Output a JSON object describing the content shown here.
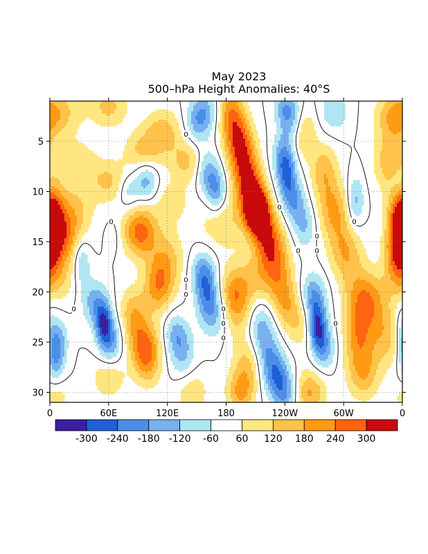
{
  "chart_data": {
    "type": "heatmap",
    "title_line1": "May 2023",
    "title_line2": "500–hPa  Height  Anomalies: 40°S",
    "x_axis": {
      "range_deg_east": [
        0,
        360
      ],
      "ticks": [
        {
          "lon": 0,
          "label": "0"
        },
        {
          "lon": 60,
          "label": "60E"
        },
        {
          "lon": 120,
          "label": "120E"
        },
        {
          "lon": 180,
          "label": "180"
        },
        {
          "lon": 240,
          "label": "120W"
        },
        {
          "lon": 300,
          "label": "60W"
        },
        {
          "lon": 360,
          "label": "0"
        }
      ]
    },
    "y_axis": {
      "range_days": [
        1,
        31
      ],
      "inverted": true,
      "ticks": [
        5,
        10,
        15,
        20,
        25,
        30
      ]
    },
    "grid": "dotted",
    "colorbar": {
      "placement": "bottom",
      "levels": [
        -300,
        -240,
        -180,
        -120,
        -60,
        60,
        120,
        180,
        240,
        300
      ],
      "labels": [
        "-300",
        "-240",
        "-180",
        "-120",
        "-60",
        "60",
        "120",
        "180",
        "240",
        "300"
      ],
      "colors": [
        "#3c1e9e",
        "#1e60d6",
        "#4a8ee8",
        "#78b0f0",
        "#b0e6f2",
        "#ffffff",
        "#ffe680",
        "#ffc24a",
        "#ff9a14",
        "#ff6410",
        "#c80a0a"
      ]
    },
    "zero_contour_labels": [
      "0",
      "0",
      "0",
      "0",
      "0",
      "0",
      "0",
      "0",
      "0",
      "0",
      "0",
      "0",
      "0",
      "0"
    ],
    "features": [
      {
        "lon": 0,
        "day": 13.5,
        "value": 240,
        "sx": 9,
        "st": 2.5
      },
      {
        "lon": 12,
        "day": 2,
        "value": 110,
        "sx": 16,
        "st": 1.8
      },
      {
        "lon": 360,
        "day": 13,
        "value": 230,
        "sx": 10,
        "st": 2.5
      },
      {
        "lon": 60,
        "day": 1.5,
        "value": 140,
        "sx": 14,
        "st": 1.5
      },
      {
        "lon": 115,
        "day": 4,
        "value": 150,
        "sx": 14,
        "st": 1.6
      },
      {
        "lon": 95,
        "day": 6,
        "value": 130,
        "sx": 14,
        "st": 1.4
      },
      {
        "lon": 150,
        "day": 3,
        "value": -150,
        "sx": 9,
        "st": 1.6
      },
      {
        "lon": 160,
        "day": 2,
        "value": -110,
        "sx": 8,
        "st": 1.4
      },
      {
        "lon": 185,
        "day": 2,
        "value": 190,
        "sx": 9,
        "st": 2.0
      },
      {
        "lon": 193,
        "day": 5,
        "value": 250,
        "sx": 10,
        "st": 2.0
      },
      {
        "lon": 200,
        "day": 8,
        "value": 230,
        "sx": 10,
        "st": 2.0
      },
      {
        "lon": 207,
        "day": 11,
        "value": 260,
        "sx": 10,
        "st": 2.0
      },
      {
        "lon": 212,
        "day": 12,
        "value": 330,
        "sx": 8,
        "st": 1.5
      },
      {
        "lon": 222,
        "day": 14.5,
        "value": 250,
        "sx": 10,
        "st": 2.0
      },
      {
        "lon": 232,
        "day": 17.5,
        "value": 190,
        "sx": 11,
        "st": 2.2
      },
      {
        "lon": 207,
        "day": 19,
        "value": 130,
        "sx": 14,
        "st": 2.0
      },
      {
        "lon": 248,
        "day": 3,
        "value": -170,
        "sx": 9,
        "st": 1.6
      },
      {
        "lon": 240,
        "day": 1.5,
        "value": -120,
        "sx": 8,
        "st": 1.3
      },
      {
        "lon": 258,
        "day": 4,
        "value": 170,
        "sx": 9,
        "st": 1.8
      },
      {
        "lon": 238,
        "day": 6.5,
        "value": -140,
        "sx": 8,
        "st": 1.6
      },
      {
        "lon": 242,
        "day": 8.5,
        "value": -200,
        "sx": 7,
        "st": 1.8
      },
      {
        "lon": 250,
        "day": 11,
        "value": -150,
        "sx": 8,
        "st": 1.6
      },
      {
        "lon": 260,
        "day": 13.5,
        "value": -120,
        "sx": 8,
        "st": 1.6
      },
      {
        "lon": 280,
        "day": 8,
        "value": 160,
        "sx": 10,
        "st": 2.0
      },
      {
        "lon": 290,
        "day": 12,
        "value": 180,
        "sx": 11,
        "st": 2.0
      },
      {
        "lon": 302,
        "day": 16,
        "value": 170,
        "sx": 12,
        "st": 2.0
      },
      {
        "lon": 315,
        "day": 20,
        "value": 120,
        "sx": 12,
        "st": 2.0
      },
      {
        "lon": 290,
        "day": 2,
        "value": -120,
        "sx": 10,
        "st": 1.5
      },
      {
        "lon": 312,
        "day": 11,
        "value": -150,
        "sx": 6,
        "st": 1.8
      },
      {
        "lon": 348,
        "day": 7,
        "value": 170,
        "sx": 12,
        "st": 2.0
      },
      {
        "lon": 352,
        "day": 2.5,
        "value": 170,
        "sx": 14,
        "st": 1.6
      },
      {
        "lon": 355,
        "day": 9,
        "value": -80,
        "sx": 6,
        "st": 1.3
      },
      {
        "lon": 30,
        "day": 7,
        "value": 90,
        "sx": 14,
        "st": 1.6
      },
      {
        "lon": 60,
        "day": 9,
        "value": 130,
        "sx": 14,
        "st": 1.5
      },
      {
        "lon": 98,
        "day": 9,
        "value": -160,
        "sx": 8,
        "st": 1.4
      },
      {
        "lon": 80,
        "day": 10,
        "value": -110,
        "sx": 7,
        "st": 1.2
      },
      {
        "lon": 140,
        "day": 7,
        "value": 140,
        "sx": 12,
        "st": 1.5
      },
      {
        "lon": 170,
        "day": 10,
        "value": -190,
        "sx": 7,
        "st": 1.6
      },
      {
        "lon": 160,
        "day": 8,
        "value": -150,
        "sx": 8,
        "st": 1.6
      },
      {
        "lon": 175,
        "day": 13,
        "value": 120,
        "sx": 16,
        "st": 2.0
      },
      {
        "lon": 25,
        "day": 12,
        "value": 130,
        "sx": 14,
        "st": 2.0
      },
      {
        "lon": 18,
        "day": 15,
        "value": 150,
        "sx": 10,
        "st": 2.0
      },
      {
        "lon": 95,
        "day": 14,
        "value": 160,
        "sx": 12,
        "st": 2.0
      },
      {
        "lon": 120,
        "day": 17,
        "value": 150,
        "sx": 12,
        "st": 2.2
      },
      {
        "lon": 110,
        "day": 19.5,
        "value": 190,
        "sx": 10,
        "st": 1.8
      },
      {
        "lon": 88,
        "day": 14,
        "value": 120,
        "sx": 12,
        "st": 1.6
      },
      {
        "lon": 32,
        "day": 17,
        "value": -140,
        "sx": 6,
        "st": 1.6
      },
      {
        "lon": 65,
        "day": 14.5,
        "value": -50,
        "sx": 6,
        "st": 1.2
      },
      {
        "lon": 160,
        "day": 20,
        "value": -170,
        "sx": 8,
        "st": 2.0
      },
      {
        "lon": 155,
        "day": 18,
        "value": -130,
        "sx": 9,
        "st": 1.6
      },
      {
        "lon": 168,
        "day": 22,
        "value": -130,
        "sx": 9,
        "st": 1.8
      },
      {
        "lon": 185,
        "day": 20,
        "value": 140,
        "sx": 10,
        "st": 1.8
      },
      {
        "lon": 193,
        "day": 22,
        "value": 120,
        "sx": 10,
        "st": 2.0
      },
      {
        "lon": 45,
        "day": 21,
        "value": -150,
        "sx": 9,
        "st": 1.6
      },
      {
        "lon": 55,
        "day": 23,
        "value": -260,
        "sx": 6,
        "st": 1.5
      },
      {
        "lon": 62,
        "day": 25,
        "value": -180,
        "sx": 8,
        "st": 1.6
      },
      {
        "lon": 10,
        "day": 25,
        "value": -140,
        "sx": 6,
        "st": 1.6
      },
      {
        "lon": 5,
        "day": 27,
        "value": -130,
        "sx": 6,
        "st": 1.6
      },
      {
        "lon": 85,
        "day": 22,
        "value": 150,
        "sx": 10,
        "st": 1.8
      },
      {
        "lon": 95,
        "day": 25,
        "value": 190,
        "sx": 11,
        "st": 1.8
      },
      {
        "lon": 100,
        "day": 27,
        "value": 160,
        "sx": 10,
        "st": 1.8
      },
      {
        "lon": 135,
        "day": 26,
        "value": -140,
        "sx": 9,
        "st": 1.8
      },
      {
        "lon": 128,
        "day": 24,
        "value": -110,
        "sx": 8,
        "st": 1.4
      },
      {
        "lon": 60,
        "day": 28.5,
        "value": 120,
        "sx": 12,
        "st": 1.5
      },
      {
        "lon": 240,
        "day": 21,
        "value": 140,
        "sx": 10,
        "st": 1.8
      },
      {
        "lon": 258,
        "day": 23,
        "value": 130,
        "sx": 12,
        "st": 1.8
      },
      {
        "lon": 215,
        "day": 23,
        "value": -120,
        "sx": 10,
        "st": 2.0
      },
      {
        "lon": 220,
        "day": 26,
        "value": -150,
        "sx": 10,
        "st": 2.0
      },
      {
        "lon": 230,
        "day": 28,
        "value": -180,
        "sx": 9,
        "st": 1.6
      },
      {
        "lon": 240,
        "day": 30,
        "value": -190,
        "sx": 9,
        "st": 1.5
      },
      {
        "lon": 270,
        "day": 22,
        "value": -140,
        "sx": 9,
        "st": 1.8
      },
      {
        "lon": 273,
        "day": 23.5,
        "value": -240,
        "sx": 6,
        "st": 1.6
      },
      {
        "lon": 280,
        "day": 25.5,
        "value": -170,
        "sx": 8,
        "st": 1.6
      },
      {
        "lon": 268,
        "day": 20,
        "value": -120,
        "sx": 9,
        "st": 1.5
      },
      {
        "lon": 315,
        "day": 24,
        "value": 190,
        "sx": 11,
        "st": 2.2
      },
      {
        "lon": 330,
        "day": 21,
        "value": 150,
        "sx": 12,
        "st": 2.0
      },
      {
        "lon": 320,
        "day": 28,
        "value": 170,
        "sx": 12,
        "st": 2.0
      },
      {
        "lon": 345,
        "day": 24.5,
        "value": 140,
        "sx": 12,
        "st": 2.0
      },
      {
        "lon": 355,
        "day": 17,
        "value": 190,
        "sx": 10,
        "st": 2.2
      },
      {
        "lon": 360,
        "day": 24,
        "value": -140,
        "sx": 6,
        "st": 1.8
      },
      {
        "lon": 205,
        "day": 27,
        "value": 150,
        "sx": 12,
        "st": 1.8
      },
      {
        "lon": 195,
        "day": 30,
        "value": 190,
        "sx": 10,
        "st": 1.6
      },
      {
        "lon": 145,
        "day": 30,
        "value": 110,
        "sx": 12,
        "st": 1.5
      },
      {
        "lon": 265,
        "day": 30,
        "value": 190,
        "sx": 12,
        "st": 1.6
      },
      {
        "lon": 10,
        "day": 19,
        "value": 80,
        "sx": 12,
        "st": 1.6
      },
      {
        "lon": 5,
        "day": 30.5,
        "value": 100,
        "sx": 10,
        "st": 1.2
      },
      {
        "lon": 125,
        "day": 11,
        "value": 90,
        "sx": 12,
        "st": 1.5
      }
    ]
  }
}
